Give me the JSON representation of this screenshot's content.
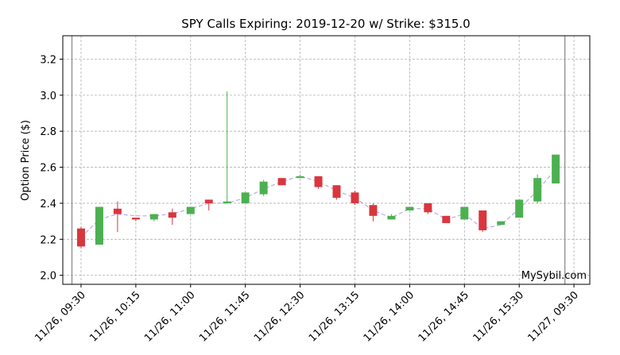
{
  "chart_data": {
    "type": "candlestick",
    "title": "SPY Calls Expiring: 2019-12-20 w/ Strike: $315.0",
    "ylabel": "Option Price ($)",
    "xlabel": "",
    "ylim": [
      1.95,
      3.33
    ],
    "yticks": [
      2.0,
      2.2,
      2.4,
      2.6,
      2.8,
      3.0,
      3.2
    ],
    "xticks": [
      {
        "label": "11/26, 09:30",
        "t": 0
      },
      {
        "label": "11/26, 10:15",
        "t": 45
      },
      {
        "label": "11/26, 11:00",
        "t": 90
      },
      {
        "label": "11/26, 11:45",
        "t": 135
      },
      {
        "label": "11/26, 12:30",
        "t": 180
      },
      {
        "label": "11/26, 13:15",
        "t": 225
      },
      {
        "label": "11/26, 14:00",
        "t": 270
      },
      {
        "label": "11/26, 14:45",
        "t": 315
      },
      {
        "label": "11/26, 15:30",
        "t": 360
      },
      {
        "label": "11/27, 09:30",
        "t": 405
      }
    ],
    "session_bounds": [
      -7.5,
      397.5
    ],
    "xlim": [
      -15,
      418
    ],
    "grid": true,
    "up_color": "#4cb050",
    "down_color": "#d9363e",
    "trend_color": "#b7a9e6",
    "candles": [
      {
        "t": 0,
        "open": 2.26,
        "high": 2.27,
        "low": 2.15,
        "close": 2.16
      },
      {
        "t": 15,
        "open": 2.17,
        "high": 2.38,
        "low": 2.17,
        "close": 2.38
      },
      {
        "t": 30,
        "open": 2.37,
        "high": 2.41,
        "low": 2.24,
        "close": 2.34
      },
      {
        "t": 45,
        "open": 2.32,
        "high": 2.32,
        "low": 2.3,
        "close": 2.31
      },
      {
        "t": 60,
        "open": 2.31,
        "high": 2.34,
        "low": 2.3,
        "close": 2.34
      },
      {
        "t": 75,
        "open": 2.35,
        "high": 2.37,
        "low": 2.28,
        "close": 2.32
      },
      {
        "t": 90,
        "open": 2.34,
        "high": 2.38,
        "low": 2.34,
        "close": 2.38
      },
      {
        "t": 105,
        "open": 2.42,
        "high": 2.42,
        "low": 2.36,
        "close": 2.4
      },
      {
        "t": 120,
        "open": 2.4,
        "high": 3.02,
        "low": 2.4,
        "close": 2.41
      },
      {
        "t": 135,
        "open": 2.4,
        "high": 2.46,
        "low": 2.4,
        "close": 2.46
      },
      {
        "t": 150,
        "open": 2.45,
        "high": 2.53,
        "low": 2.44,
        "close": 2.52
      },
      {
        "t": 165,
        "open": 2.54,
        "high": 2.54,
        "low": 2.5,
        "close": 2.5
      },
      {
        "t": 180,
        "open": 2.54,
        "high": 2.56,
        "low": 2.54,
        "close": 2.55
      },
      {
        "t": 195,
        "open": 2.55,
        "high": 2.55,
        "low": 2.48,
        "close": 2.49
      },
      {
        "t": 210,
        "open": 2.5,
        "high": 2.5,
        "low": 2.42,
        "close": 2.43
      },
      {
        "t": 225,
        "open": 2.46,
        "high": 2.47,
        "low": 2.39,
        "close": 2.4
      },
      {
        "t": 240,
        "open": 2.39,
        "high": 2.4,
        "low": 2.3,
        "close": 2.33
      },
      {
        "t": 255,
        "open": 2.31,
        "high": 2.34,
        "low": 2.31,
        "close": 2.33
      },
      {
        "t": 270,
        "open": 2.36,
        "high": 2.38,
        "low": 2.36,
        "close": 2.38
      },
      {
        "t": 285,
        "open": 2.4,
        "high": 2.4,
        "low": 2.34,
        "close": 2.35
      },
      {
        "t": 300,
        "open": 2.33,
        "high": 2.33,
        "low": 2.29,
        "close": 2.29
      },
      {
        "t": 315,
        "open": 2.31,
        "high": 2.38,
        "low": 2.31,
        "close": 2.38
      },
      {
        "t": 330,
        "open": 2.36,
        "high": 2.36,
        "low": 2.24,
        "close": 2.25
      },
      {
        "t": 345,
        "open": 2.28,
        "high": 2.3,
        "low": 2.28,
        "close": 2.3
      },
      {
        "t": 360,
        "open": 2.32,
        "high": 2.42,
        "low": 2.32,
        "close": 2.42
      },
      {
        "t": 375,
        "open": 2.41,
        "high": 2.56,
        "low": 2.4,
        "close": 2.54
      },
      {
        "t": 390,
        "open": 2.51,
        "high": 2.67,
        "low": 2.51,
        "close": 2.67
      }
    ],
    "trend": [
      {
        "t": 0,
        "y": 2.21
      },
      {
        "t": 15,
        "y": 2.31
      },
      {
        "t": 30,
        "y": 2.34
      },
      {
        "t": 45,
        "y": 2.33
      },
      {
        "t": 60,
        "y": 2.33
      },
      {
        "t": 75,
        "y": 2.34
      },
      {
        "t": 90,
        "y": 2.37
      },
      {
        "t": 105,
        "y": 2.4
      },
      {
        "t": 120,
        "y": 2.4
      },
      {
        "t": 135,
        "y": 2.43
      },
      {
        "t": 150,
        "y": 2.48
      },
      {
        "t": 165,
        "y": 2.52
      },
      {
        "t": 180,
        "y": 2.55
      },
      {
        "t": 195,
        "y": 2.52
      },
      {
        "t": 210,
        "y": 2.47
      },
      {
        "t": 225,
        "y": 2.43
      },
      {
        "t": 240,
        "y": 2.36
      },
      {
        "t": 255,
        "y": 2.32
      },
      {
        "t": 270,
        "y": 2.37
      },
      {
        "t": 285,
        "y": 2.37
      },
      {
        "t": 300,
        "y": 2.31
      },
      {
        "t": 315,
        "y": 2.34
      },
      {
        "t": 330,
        "y": 2.26
      },
      {
        "t": 345,
        "y": 2.28
      },
      {
        "t": 360,
        "y": 2.37
      },
      {
        "t": 375,
        "y": 2.47
      },
      {
        "t": 390,
        "y": 2.59
      }
    ],
    "watermark": "MySybil.com"
  }
}
